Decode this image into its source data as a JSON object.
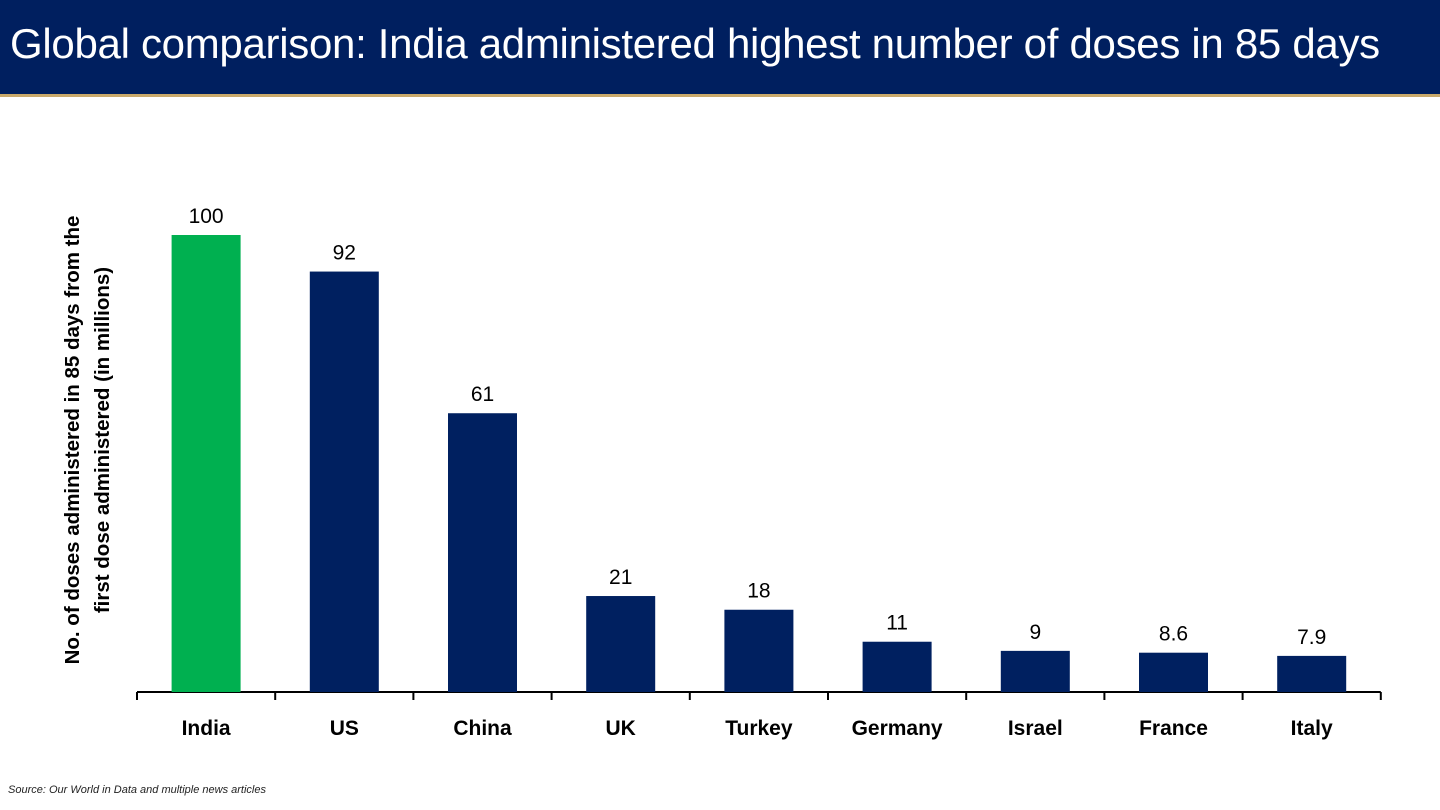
{
  "header": {
    "title": "Global comparison: India administered highest number of doses in 85 days"
  },
  "chart_data": {
    "type": "bar",
    "title": "Global comparison: India administered highest number of doses in 85 days",
    "categories": [
      "India",
      "US",
      "China",
      "UK",
      "Turkey",
      "Germany",
      "Israel",
      "France",
      "Italy"
    ],
    "values": [
      100,
      92,
      61,
      21,
      18,
      11,
      9,
      8.6,
      7.9
    ],
    "value_labels": [
      "100",
      "92",
      "61",
      "21",
      "18",
      "11",
      "9",
      "8.6",
      "7.9"
    ],
    "ylabel_line1": "No. of doses administered in 85 days from the",
    "ylabel_line2": "first dose administered (in millions)",
    "xlabel": "",
    "ylim": [
      0,
      100
    ],
    "grid": false,
    "highlight_category": "India",
    "colors": {
      "highlight": "#00b050",
      "default": "#002060"
    }
  },
  "footer": {
    "source": "Source: Our World in Data and multiple news articles"
  }
}
